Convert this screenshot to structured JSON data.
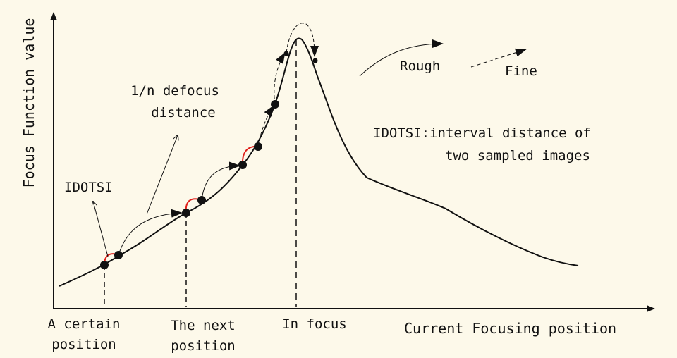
{
  "axes": {
    "y_label": "Focus Function value",
    "x_label": "Current Focusing position"
  },
  "x_ticks": {
    "certain_line1": "A certain",
    "certain_line2": "position",
    "next_line1": "The next",
    "next_line2": "position",
    "focus": "In focus"
  },
  "annotations": {
    "idotsi_short": "IDOTSI",
    "defocus_line1": "1/n defocus",
    "defocus_line2": "distance",
    "idotsi_def_line1": "IDOTSI:interval distance of",
    "idotsi_def_line2": "two sampled images"
  },
  "legend": {
    "rough": "Rough",
    "fine": "Fine"
  },
  "colors": {
    "background": "#fdf9ea",
    "ink": "#111111",
    "highlight": "#e0201b"
  }
}
